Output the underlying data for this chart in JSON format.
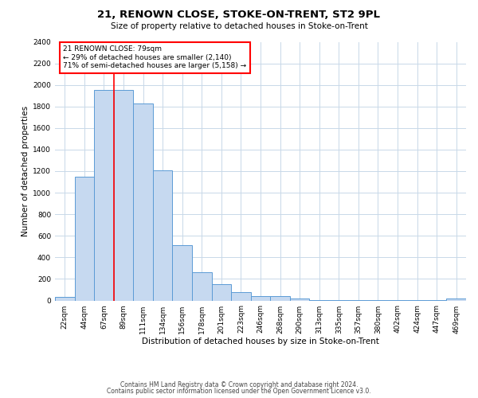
{
  "title": "21, RENOWN CLOSE, STOKE-ON-TRENT, ST2 9PL",
  "subtitle": "Size of property relative to detached houses in Stoke-on-Trent",
  "xlabel": "Distribution of detached houses by size in Stoke-on-Trent",
  "ylabel": "Number of detached properties",
  "footnote1": "Contains HM Land Registry data © Crown copyright and database right 2024.",
  "footnote2": "Contains public sector information licensed under the Open Government Licence v3.0.",
  "bin_labels": [
    "22sqm",
    "44sqm",
    "67sqm",
    "89sqm",
    "111sqm",
    "134sqm",
    "156sqm",
    "178sqm",
    "201sqm",
    "223sqm",
    "246sqm",
    "268sqm",
    "290sqm",
    "313sqm",
    "335sqm",
    "357sqm",
    "380sqm",
    "402sqm",
    "424sqm",
    "447sqm",
    "469sqm"
  ],
  "bar_heights": [
    30,
    1150,
    1950,
    1950,
    1830,
    1210,
    510,
    265,
    155,
    75,
    40,
    40,
    20,
    5,
    5,
    3,
    3,
    3,
    3,
    3,
    20
  ],
  "bar_color": "#c6d9f0",
  "bar_edge_color": "#5b9bd5",
  "property_bin_index": 3,
  "annotation_text": "21 RENOWN CLOSE: 79sqm\n← 29% of detached houses are smaller (2,140)\n71% of semi-detached houses are larger (5,158) →",
  "annotation_box_color": "white",
  "annotation_box_edge": "red",
  "ylim": [
    0,
    2400
  ],
  "yticks": [
    0,
    200,
    400,
    600,
    800,
    1000,
    1200,
    1400,
    1600,
    1800,
    2000,
    2200,
    2400
  ],
  "vline_color": "red",
  "grid_color": "#c8d8e8",
  "background_color": "white",
  "title_fontsize": 9.5,
  "subtitle_fontsize": 7.5,
  "ylabel_fontsize": 7.5,
  "xlabel_fontsize": 7.5,
  "tick_fontsize": 6.5,
  "annot_fontsize": 6.5,
  "footnote_fontsize": 5.5
}
